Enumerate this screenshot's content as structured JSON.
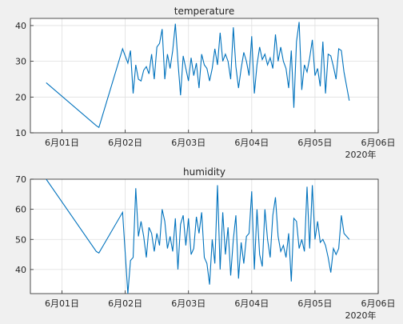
{
  "chart_data": [
    {
      "type": "line",
      "title": "temperature",
      "xlabel": "",
      "ylabel": "",
      "x_axis_type": "date",
      "x_tick_labels": [
        "6月01日",
        "6月02日",
        "6月03日",
        "6月04日",
        "6月05日",
        "6月06日"
      ],
      "x_secondary_label": "2020年",
      "xlim": [
        "2020-05-31T12:00",
        "2020-06-06T00:00"
      ],
      "ylim": [
        10,
        42
      ],
      "y_ticks": [
        10,
        20,
        30,
        40
      ],
      "grid": true,
      "series": [
        {
          "color": "#0072bd",
          "x": [
            "2020-05-31T18:00",
            "2020-06-01T13:00",
            "2020-06-01T14:00",
            "2020-06-01T23:00",
            "2020-06-02T01:00",
            "2020-06-02T02:00",
            "2020-06-02T03:00",
            "2020-06-02T04:00",
            "2020-06-02T05:00",
            "2020-06-02T06:00",
            "2020-06-02T07:00",
            "2020-06-02T08:00",
            "2020-06-02T09:00",
            "2020-06-02T10:00",
            "2020-06-02T11:00",
            "2020-06-02T12:00",
            "2020-06-02T13:00",
            "2020-06-02T14:00",
            "2020-06-02T15:00",
            "2020-06-02T16:00",
            "2020-06-02T17:00",
            "2020-06-02T18:00",
            "2020-06-02T19:00",
            "2020-06-02T20:00",
            "2020-06-02T21:00",
            "2020-06-02T22:00",
            "2020-06-02T23:00",
            "2020-06-03T00:00",
            "2020-06-03T01:00",
            "2020-06-03T02:00",
            "2020-06-03T03:00",
            "2020-06-03T04:00",
            "2020-06-03T05:00",
            "2020-06-03T06:00",
            "2020-06-03T07:00",
            "2020-06-03T08:00",
            "2020-06-03T09:00",
            "2020-06-03T10:00",
            "2020-06-03T11:00",
            "2020-06-03T12:00",
            "2020-06-03T13:00",
            "2020-06-03T14:00",
            "2020-06-03T15:00",
            "2020-06-03T16:00",
            "2020-06-03T17:00",
            "2020-06-03T18:00",
            "2020-06-03T19:00",
            "2020-06-03T20:00",
            "2020-06-03T21:00",
            "2020-06-03T22:00",
            "2020-06-03T23:00",
            "2020-06-04T00:00",
            "2020-06-04T01:00",
            "2020-06-04T02:00",
            "2020-06-04T03:00",
            "2020-06-04T04:00",
            "2020-06-04T05:00",
            "2020-06-04T06:00",
            "2020-06-04T07:00",
            "2020-06-04T08:00",
            "2020-06-04T09:00",
            "2020-06-04T10:00",
            "2020-06-04T11:00",
            "2020-06-04T12:00",
            "2020-06-04T13:00",
            "2020-06-04T14:00",
            "2020-06-04T15:00",
            "2020-06-04T16:00",
            "2020-06-04T17:00",
            "2020-06-04T18:00",
            "2020-06-04T19:00",
            "2020-06-04T20:00",
            "2020-06-04T21:00",
            "2020-06-04T22:00",
            "2020-06-04T23:00",
            "2020-06-05T00:00",
            "2020-06-05T01:00",
            "2020-06-05T02:00",
            "2020-06-05T03:00",
            "2020-06-05T04:00",
            "2020-06-05T05:00",
            "2020-06-05T06:00",
            "2020-06-05T07:00",
            "2020-06-05T08:00",
            "2020-06-05T09:00",
            "2020-06-05T10:00",
            "2020-06-05T11:00",
            "2020-06-05T12:00",
            "2020-06-05T13:00"
          ],
          "values": [
            24.0,
            12.0,
            11.5,
            33.5,
            29.5,
            33.0,
            21.0,
            29.0,
            25.0,
            24.5,
            27.5,
            28.5,
            26.5,
            32.0,
            25.0,
            34.0,
            35.0,
            39.0,
            25.0,
            32.0,
            28.0,
            33.0,
            40.5,
            30.0,
            20.5,
            31.5,
            28.0,
            24.5,
            31.0,
            26.0,
            29.5,
            22.5,
            32.0,
            29.0,
            28.0,
            24.5,
            28.0,
            33.5,
            29.0,
            38.0,
            30.0,
            32.0,
            30.0,
            25.0,
            39.5,
            28.5,
            22.5,
            28.0,
            32.5,
            30.0,
            26.0,
            37.0,
            21.0,
            29.0,
            34.0,
            30.5,
            32.0,
            29.0,
            31.0,
            28.0,
            37.5,
            30.0,
            34.0,
            30.0,
            28.0,
            22.5,
            33.0,
            17.0,
            35.5,
            41.0,
            22.0,
            29.0,
            27.0,
            31.0,
            36.0,
            26.0,
            28.0,
            23.0,
            35.5,
            21.0,
            32.0,
            31.5,
            28.5,
            25.0,
            33.5,
            33.0,
            27.0,
            23.0,
            19.0
          ]
        }
      ]
    },
    {
      "type": "line",
      "title": "humidity",
      "xlabel": "",
      "ylabel": "",
      "x_axis_type": "date",
      "x_tick_labels": [
        "6月01日",
        "6月02日",
        "6月03日",
        "6月04日",
        "6月05日",
        "6月06日"
      ],
      "x_secondary_label": "2020年",
      "xlim": [
        "2020-05-31T12:00",
        "2020-06-06T00:00"
      ],
      "ylim": [
        32,
        70
      ],
      "y_ticks": [
        40,
        50,
        60,
        70
      ],
      "grid": true,
      "series": [
        {
          "color": "#0072bd",
          "x": [
            "2020-05-31T18:00",
            "2020-06-01T13:00",
            "2020-06-01T14:00",
            "2020-06-01T23:00",
            "2020-06-02T01:00",
            "2020-06-02T02:00",
            "2020-06-02T03:00",
            "2020-06-02T04:00",
            "2020-06-02T05:00",
            "2020-06-02T06:00",
            "2020-06-02T07:00",
            "2020-06-02T08:00",
            "2020-06-02T09:00",
            "2020-06-02T10:00",
            "2020-06-02T11:00",
            "2020-06-02T12:00",
            "2020-06-02T13:00",
            "2020-06-02T14:00",
            "2020-06-02T15:00",
            "2020-06-02T16:00",
            "2020-06-02T17:00",
            "2020-06-02T18:00",
            "2020-06-02T19:00",
            "2020-06-02T20:00",
            "2020-06-02T21:00",
            "2020-06-02T22:00",
            "2020-06-02T23:00",
            "2020-06-03T00:00",
            "2020-06-03T01:00",
            "2020-06-03T02:00",
            "2020-06-03T03:00",
            "2020-06-03T04:00",
            "2020-06-03T05:00",
            "2020-06-03T06:00",
            "2020-06-03T07:00",
            "2020-06-03T08:00",
            "2020-06-03T09:00",
            "2020-06-03T10:00",
            "2020-06-03T11:00",
            "2020-06-03T12:00",
            "2020-06-03T13:00",
            "2020-06-03T14:00",
            "2020-06-03T15:00",
            "2020-06-03T16:00",
            "2020-06-03T17:00",
            "2020-06-03T18:00",
            "2020-06-03T19:00",
            "2020-06-03T20:00",
            "2020-06-03T21:00",
            "2020-06-03T22:00",
            "2020-06-03T23:00",
            "2020-06-04T00:00",
            "2020-06-04T01:00",
            "2020-06-04T02:00",
            "2020-06-04T03:00",
            "2020-06-04T04:00",
            "2020-06-04T05:00",
            "2020-06-04T06:00",
            "2020-06-04T07:00",
            "2020-06-04T08:00",
            "2020-06-04T09:00",
            "2020-06-04T10:00",
            "2020-06-04T11:00",
            "2020-06-04T12:00",
            "2020-06-04T13:00",
            "2020-06-04T14:00",
            "2020-06-04T15:00",
            "2020-06-04T16:00",
            "2020-06-04T17:00",
            "2020-06-04T18:00",
            "2020-06-04T19:00",
            "2020-06-04T20:00",
            "2020-06-04T21:00",
            "2020-06-04T22:00",
            "2020-06-04T23:00",
            "2020-06-05T00:00",
            "2020-06-05T01:00",
            "2020-06-05T02:00",
            "2020-06-05T03:00",
            "2020-06-05T04:00",
            "2020-06-05T05:00",
            "2020-06-05T06:00",
            "2020-06-05T07:00",
            "2020-06-05T08:00",
            "2020-06-05T09:00",
            "2020-06-05T10:00",
            "2020-06-05T11:00",
            "2020-06-05T12:00",
            "2020-06-05T13:00"
          ],
          "values": [
            70.0,
            46.0,
            45.5,
            59.0,
            32.0,
            43.0,
            44.0,
            67.0,
            51.0,
            56.0,
            51.0,
            44.0,
            54.0,
            52.0,
            46.0,
            52.0,
            48.0,
            60.0,
            56.0,
            47.0,
            51.0,
            46.0,
            57.0,
            40.0,
            55.0,
            58.0,
            48.0,
            57.0,
            45.0,
            47.0,
            57.5,
            52.0,
            59.0,
            44.0,
            42.0,
            35.0,
            50.0,
            42.0,
            68.0,
            40.0,
            59.0,
            45.0,
            54.0,
            38.0,
            50.0,
            58.0,
            37.0,
            49.0,
            42.0,
            51.0,
            52.0,
            66.0,
            40.0,
            60.0,
            45.0,
            41.0,
            60.0,
            50.0,
            44.0,
            58.0,
            64.0,
            51.0,
            46.0,
            48.0,
            44.0,
            52.0,
            36.0,
            57.0,
            56.0,
            47.0,
            50.0,
            46.0,
            67.5,
            47.0,
            68.0,
            50.0,
            56.0,
            49.0,
            50.0,
            48.0,
            44.0,
            39.0,
            47.0,
            45.0,
            47.0,
            58.0,
            52.0,
            51.0,
            50.0
          ]
        }
      ]
    }
  ]
}
